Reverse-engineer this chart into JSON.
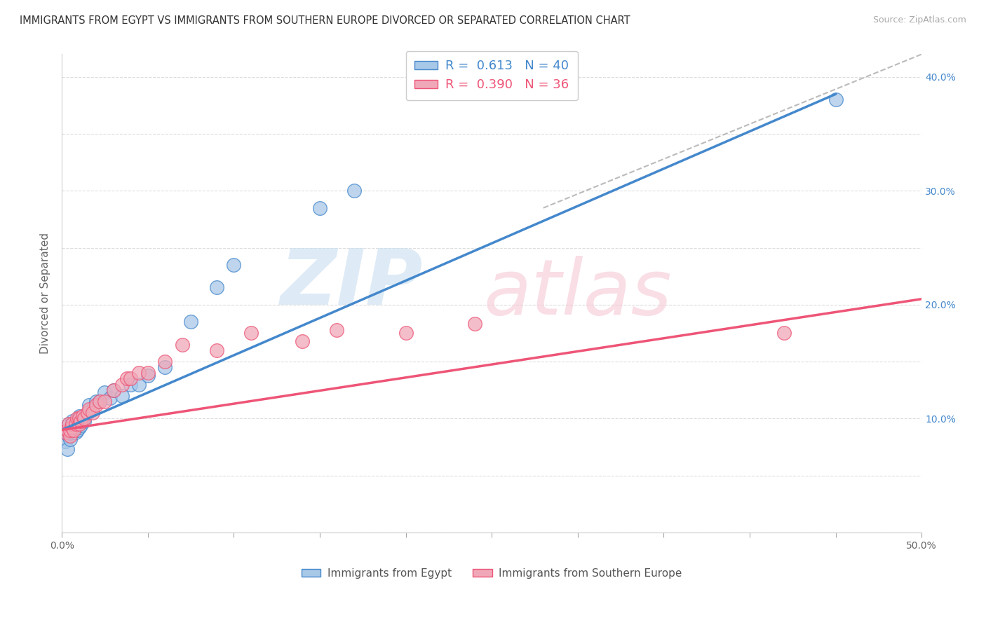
{
  "title": "IMMIGRANTS FROM EGYPT VS IMMIGRANTS FROM SOUTHERN EUROPE DIVORCED OR SEPARATED CORRELATION CHART",
  "source": "Source: ZipAtlas.com",
  "ylabel": "Divorced or Separated",
  "legend_label1": "Immigrants from Egypt",
  "legend_label2": "Immigrants from Southern Europe",
  "r1": 0.613,
  "n1": 40,
  "r2": 0.39,
  "n2": 36,
  "xlim": [
    0.0,
    0.5
  ],
  "ylim": [
    0.0,
    0.42
  ],
  "xticks": [
    0.0,
    0.05,
    0.1,
    0.15,
    0.2,
    0.25,
    0.3,
    0.35,
    0.4,
    0.45,
    0.5
  ],
  "yticks": [
    0.0,
    0.05,
    0.1,
    0.15,
    0.2,
    0.25,
    0.3,
    0.35,
    0.4
  ],
  "xtick_labels": [
    "0.0%",
    "",
    "",
    "",
    "",
    "",
    "",
    "",
    "",
    "",
    "50.0%"
  ],
  "ytick_labels_right": [
    "",
    "",
    "10.0%",
    "",
    "20.0%",
    "",
    "30.0%",
    "",
    "40.0%"
  ],
  "color_egypt": "#a8c8e8",
  "color_south_europe": "#f0a8b8",
  "line_color_egypt": "#4488cc",
  "line_color_south_europe": "#ee5577",
  "line_color_dashed": "#bbbbbb",
  "background_color": "#ffffff",
  "egypt_line": [
    0.0,
    0.09,
    0.45,
    0.385
  ],
  "south_line": [
    0.0,
    0.09,
    0.5,
    0.205
  ],
  "dash_line": [
    0.28,
    0.285,
    0.5,
    0.42
  ],
  "egypt_x": [
    0.002,
    0.003,
    0.004,
    0.004,
    0.005,
    0.005,
    0.006,
    0.006,
    0.006,
    0.007,
    0.007,
    0.008,
    0.008,
    0.009,
    0.009,
    0.01,
    0.01,
    0.01,
    0.011,
    0.012,
    0.013,
    0.015,
    0.016,
    0.018,
    0.02,
    0.022,
    0.025,
    0.028,
    0.03,
    0.035,
    0.04,
    0.045,
    0.05,
    0.06,
    0.075,
    0.09,
    0.1,
    0.15,
    0.17,
    0.45
  ],
  "egypt_y": [
    0.08,
    0.073,
    0.085,
    0.095,
    0.082,
    0.087,
    0.088,
    0.094,
    0.098,
    0.09,
    0.095,
    0.088,
    0.093,
    0.09,
    0.097,
    0.092,
    0.098,
    0.102,
    0.094,
    0.1,
    0.098,
    0.105,
    0.112,
    0.108,
    0.115,
    0.115,
    0.123,
    0.118,
    0.125,
    0.12,
    0.13,
    0.13,
    0.138,
    0.145,
    0.185,
    0.215,
    0.235,
    0.285,
    0.3,
    0.38
  ],
  "south_x": [
    0.002,
    0.003,
    0.004,
    0.005,
    0.005,
    0.006,
    0.006,
    0.007,
    0.008,
    0.009,
    0.01,
    0.01,
    0.011,
    0.012,
    0.013,
    0.015,
    0.016,
    0.018,
    0.02,
    0.022,
    0.025,
    0.03,
    0.035,
    0.038,
    0.04,
    0.045,
    0.05,
    0.06,
    0.07,
    0.09,
    0.11,
    0.14,
    0.16,
    0.2,
    0.24,
    0.42
  ],
  "south_y": [
    0.088,
    0.09,
    0.095,
    0.085,
    0.09,
    0.092,
    0.095,
    0.09,
    0.095,
    0.1,
    0.095,
    0.1,
    0.098,
    0.102,
    0.1,
    0.105,
    0.108,
    0.105,
    0.112,
    0.115,
    0.115,
    0.125,
    0.13,
    0.135,
    0.135,
    0.14,
    0.14,
    0.15,
    0.165,
    0.16,
    0.175,
    0.168,
    0.178,
    0.175,
    0.183,
    0.175
  ]
}
